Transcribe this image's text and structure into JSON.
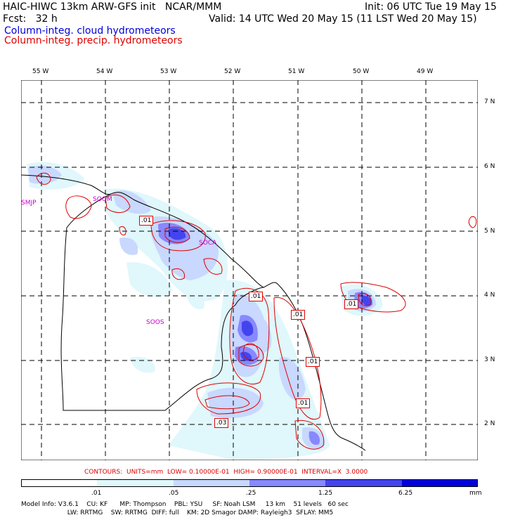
{
  "header": {
    "line1_left": "HAIC-HIWC 13km ARW-GFS init   NCAR/MMM",
    "line1_right": "Init: 06 UTC Tue 19 May 15",
    "line2_left": "Fcst:   32 h",
    "line2_right": "Valid: 14 UTC Wed 20 May 15 (11 LST Wed 20 May 15)",
    "field1": "Column-integ. cloud hydrometeors",
    "field2": "Column-integ. precip. hydrometeors",
    "field1_color": "#0000dd",
    "field2_color": "#dd0000"
  },
  "map": {
    "lon_labels": [
      "55 W",
      "54 W",
      "53 W",
      "52 W",
      "51 W",
      "50 W",
      "49 W"
    ],
    "lat_labels": [
      "7 N",
      "6 N",
      "5 N",
      "4 N",
      "3 N",
      "2 N"
    ],
    "stations": [
      "SMJP",
      "SOOM",
      "SOCA",
      "SOOS"
    ],
    "contour_boxes": [
      ".01",
      ".01",
      ".01",
      ".01",
      ".01",
      ".01",
      ".03"
    ]
  },
  "contours_text": "CONTOURS:  UNITS=mm  LOW= 0.10000E-01  HIGH= 0.90000E-01  INTERVAL=X  3.0000",
  "colorbar": {
    "labels": [
      ".01",
      ".05",
      ".25",
      "1.25",
      "6.25"
    ],
    "units": "mm",
    "colors": [
      "#ffffff",
      "#e0f7fb",
      "#c8d8ff",
      "#8888ff",
      "#4444ee",
      "#0000dd"
    ]
  },
  "model_info": {
    "line1": "Model Info: V3.6.1    CU: KF      MP: Thompson    PBL: YSU     SF: Noah LSM     13 km    51 levels   60 sec",
    "line2": "                       LW: RRTMG    SW: RRTMG  DIFF: full    KM: 2D Smagor DAMP: Rayleigh3  SFLAY: MM5"
  }
}
